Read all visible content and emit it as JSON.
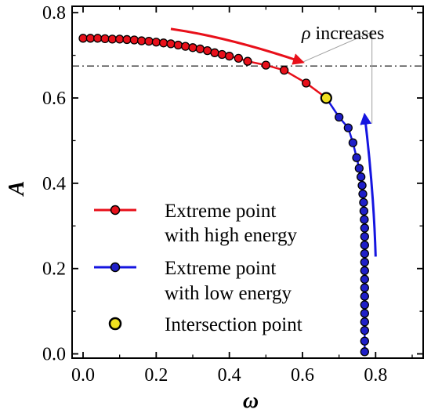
{
  "chart_data": {
    "type": "line",
    "xlabel": "ω",
    "ylabel": "A",
    "xlim": [
      -0.03,
      0.93
    ],
    "ylim": [
      -0.01,
      0.815
    ],
    "xticks": [
      0.0,
      0.2,
      0.4,
      0.6,
      0.8
    ],
    "xtick_labels": [
      "0.0",
      "0.2",
      "0.4",
      "0.6",
      "0.8"
    ],
    "yticks": [
      0.0,
      0.2,
      0.4,
      0.6,
      0.8
    ],
    "ytick_labels": [
      "0.0",
      "0.2",
      "0.4",
      "0.6",
      "0.8"
    ],
    "grid": false,
    "legend_position": "lower-left",
    "series": [
      {
        "name": "Extreme point with high energy",
        "color": "#e8101a",
        "marker_color": "#e8101a",
        "x": [
          0.0,
          0.02,
          0.04,
          0.06,
          0.08,
          0.1,
          0.12,
          0.14,
          0.16,
          0.18,
          0.2,
          0.22,
          0.24,
          0.26,
          0.28,
          0.3,
          0.32,
          0.34,
          0.36,
          0.38,
          0.4,
          0.425,
          0.45,
          0.5,
          0.55,
          0.61,
          0.665
        ],
        "y": [
          0.74,
          0.74,
          0.74,
          0.739,
          0.738,
          0.738,
          0.737,
          0.736,
          0.734,
          0.733,
          0.731,
          0.729,
          0.727,
          0.724,
          0.721,
          0.718,
          0.715,
          0.711,
          0.706,
          0.702,
          0.698,
          0.693,
          0.686,
          0.677,
          0.665,
          0.635,
          0.6
        ]
      },
      {
        "name": "Extreme point with low energy",
        "color": "#1515e0",
        "marker_color": "#1f1fc8",
        "x": [
          0.665,
          0.7,
          0.725,
          0.738,
          0.748,
          0.755,
          0.76,
          0.763,
          0.765,
          0.767,
          0.768,
          0.769,
          0.77,
          0.77,
          0.77,
          0.77,
          0.77,
          0.77,
          0.77,
          0.77,
          0.77,
          0.77,
          0.77,
          0.77,
          0.77,
          0.77,
          0.77
        ],
        "y": [
          0.6,
          0.555,
          0.53,
          0.495,
          0.46,
          0.435,
          0.415,
          0.395,
          0.375,
          0.355,
          0.335,
          0.315,
          0.295,
          0.275,
          0.255,
          0.235,
          0.215,
          0.195,
          0.175,
          0.155,
          0.135,
          0.115,
          0.095,
          0.075,
          0.055,
          0.03,
          0.005
        ]
      }
    ],
    "intersection_point": {
      "label": "Intersection point",
      "x": 0.665,
      "y": 0.6,
      "color": "#f0e020"
    },
    "reference_line": {
      "y": 0.675,
      "style": "dash-dot"
    },
    "annotation": {
      "text_prefix": "ρ",
      "text_suffix": " increases"
    },
    "arrows": [
      {
        "color": "#e8101a",
        "path_x": [
          0.24,
          0.4,
          0.6
        ],
        "path_y": [
          0.762,
          0.742,
          0.684
        ]
      },
      {
        "color": "#1515e0",
        "path_x": [
          0.8,
          0.795,
          0.77
        ],
        "path_y": [
          0.228,
          0.38,
          0.56
        ]
      }
    ],
    "legend": [
      {
        "line1": "Extreme point",
        "line2": "with high energy"
      },
      {
        "line1": "Extreme point",
        "line2": "with low energy"
      },
      {
        "line1": "Intersection point",
        "line2": ""
      }
    ]
  }
}
